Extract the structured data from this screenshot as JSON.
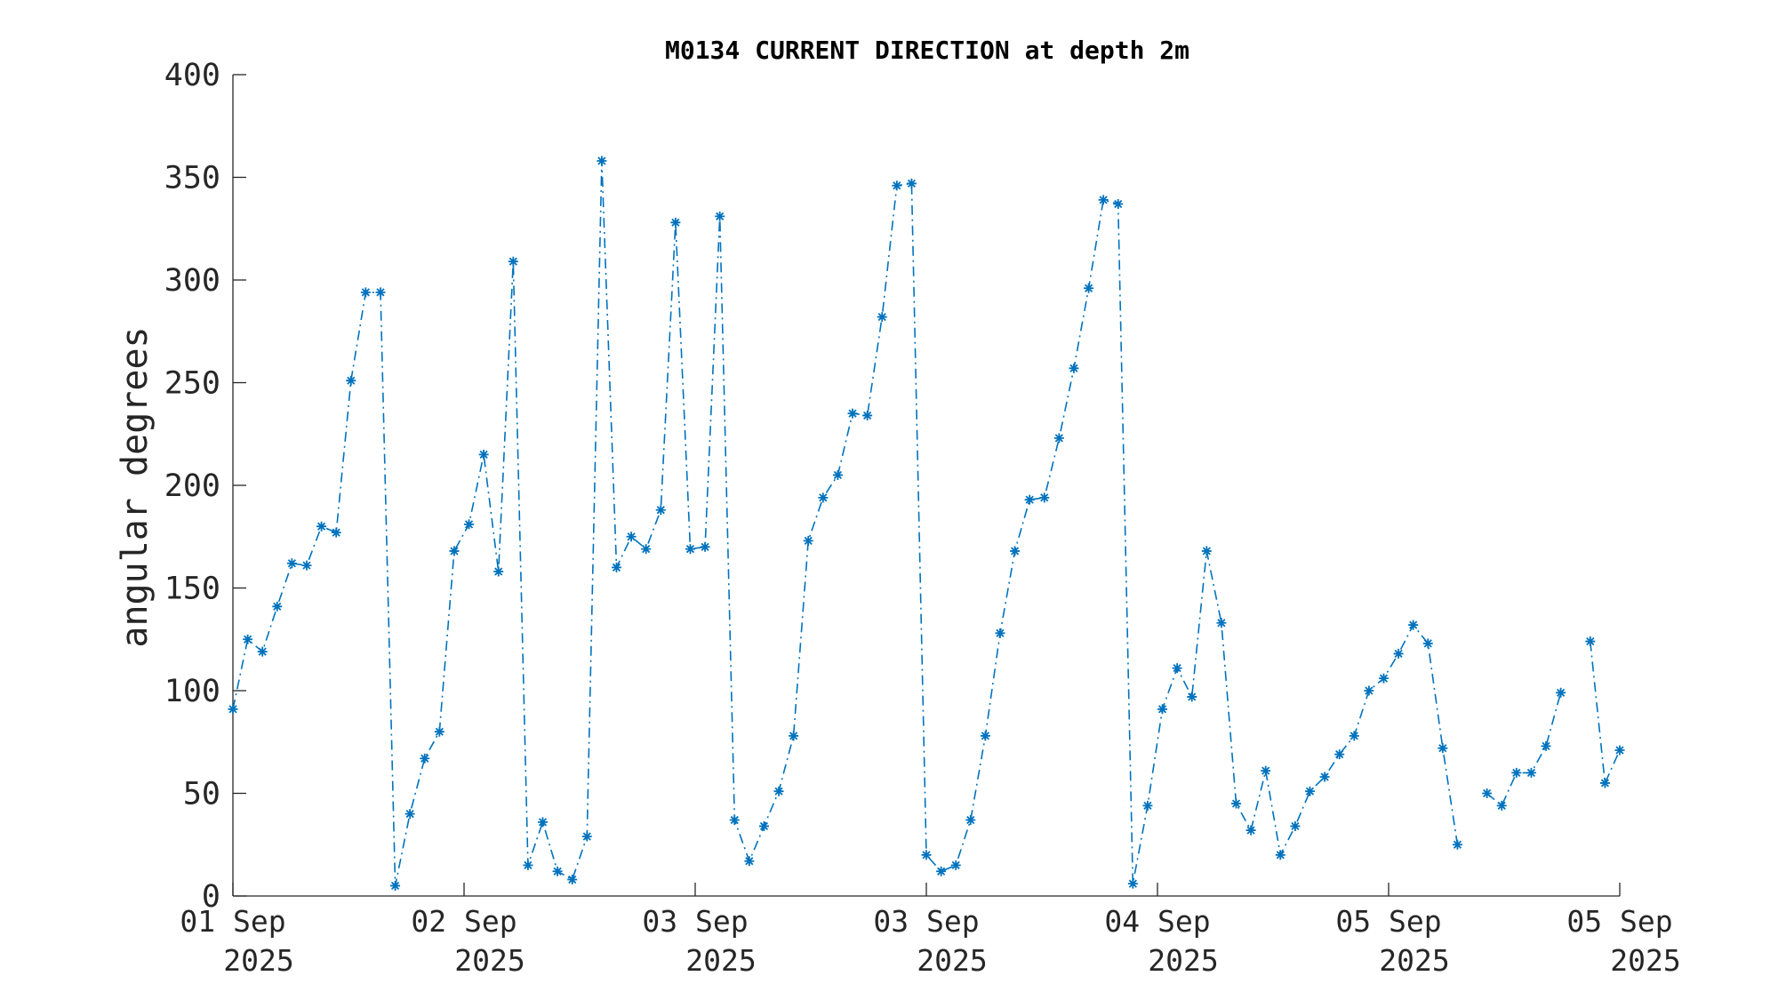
{
  "chart_data": {
    "type": "line",
    "title": "M0134 CURRENT DIRECTION at depth 2m",
    "xlabel": "",
    "ylabel": "angular degrees",
    "ylim": [
      0,
      400
    ],
    "yticks": [
      0,
      50,
      100,
      150,
      200,
      250,
      300,
      350,
      400
    ],
    "xlim": [
      0,
      6
    ],
    "xticks": [
      {
        "x": 0,
        "line1": "01 Sep",
        "line2": "2025"
      },
      {
        "x": 1,
        "line1": "02 Sep",
        "line2": "2025"
      },
      {
        "x": 2,
        "line1": "03 Sep",
        "line2": "2025"
      },
      {
        "x": 3,
        "line1": "03 Sep",
        "line2": "2025"
      },
      {
        "x": 4,
        "line1": "04 Sep",
        "line2": "2025"
      },
      {
        "x": 5,
        "line1": "05 Sep",
        "line2": "2025"
      },
      {
        "x": 6,
        "line1": "05 Sep",
        "line2": "2025"
      }
    ],
    "grid": false,
    "marker": "asterisk",
    "line_style": "dash-dot",
    "color": "#0072BD",
    "series": [
      {
        "values": [
          91,
          125,
          119,
          141,
          162,
          161,
          180,
          177,
          251,
          294,
          294,
          5,
          40,
          67,
          80,
          168,
          181,
          215,
          158,
          309,
          15,
          36,
          12,
          8,
          29,
          358,
          160,
          175,
          169,
          188,
          328,
          169,
          170,
          331,
          37,
          17,
          34,
          51,
          78,
          173,
          194,
          205,
          235,
          234,
          282,
          346,
          347,
          20,
          12,
          15,
          37,
          78,
          128,
          168,
          193,
          194,
          223,
          257,
          296,
          339,
          337,
          6,
          44,
          91,
          111,
          97,
          168,
          133,
          45,
          32,
          61,
          20,
          34,
          51,
          58,
          69,
          78,
          100,
          106,
          118,
          132,
          123,
          72,
          25,
          null,
          50,
          44,
          60,
          60,
          73,
          99,
          null,
          124,
          55,
          71
        ]
      }
    ]
  }
}
